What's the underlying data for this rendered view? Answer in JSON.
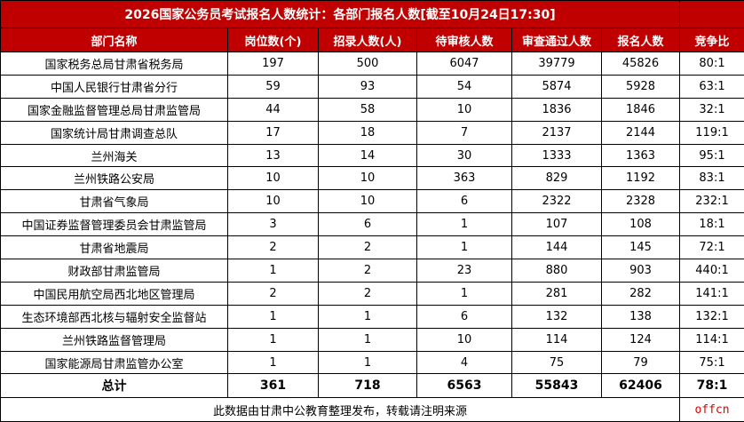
{
  "title": "2026国家公务员考试报名人数统计：各部门报名人数[截至10月24日17:30]",
  "headers": [
    "部门名称",
    "岗位数(个)",
    "招录人数(人)",
    "待审核人数",
    "审查通过人数",
    "报名人数",
    "竞争比"
  ],
  "rows": [
    [
      "国家税务总局甘肃省税务局",
      "197",
      "500",
      "6047",
      "39779",
      "45826",
      "80:1"
    ],
    [
      "中国人民银行甘肃省分行",
      "59",
      "93",
      "54",
      "5874",
      "5928",
      "63:1"
    ],
    [
      "国家金融监督管理总局甘肃监管局",
      "44",
      "58",
      "10",
      "1836",
      "1846",
      "32:1"
    ],
    [
      "国家统计局甘肃调查总队",
      "17",
      "18",
      "7",
      "2137",
      "2144",
      "119:1"
    ],
    [
      "兰州海关",
      "13",
      "14",
      "30",
      "1333",
      "1363",
      "95:1"
    ],
    [
      "兰州铁路公安局",
      "10",
      "10",
      "363",
      "829",
      "1192",
      "83:1"
    ],
    [
      "甘肃省气象局",
      "10",
      "10",
      "6",
      "2322",
      "2328",
      "232:1"
    ],
    [
      "中国证券监督管理委员会甘肃监管局",
      "3",
      "6",
      "1",
      "107",
      "108",
      "18:1"
    ],
    [
      "甘肃省地震局",
      "2",
      "2",
      "1",
      "144",
      "145",
      "72:1"
    ],
    [
      "财政部甘肃监管局",
      "1",
      "2",
      "23",
      "880",
      "903",
      "440:1"
    ],
    [
      "中国民用航空局西北地区管理局",
      "2",
      "2",
      "1",
      "281",
      "282",
      "141:1"
    ],
    [
      "生态环境部西北核与辐射安全监督站",
      "1",
      "1",
      "6",
      "132",
      "138",
      "132:1"
    ],
    [
      "兰州铁路监督管理局",
      "1",
      "1",
      "10",
      "114",
      "124",
      "114:1"
    ],
    [
      "国家能源局甘肃监管办公室",
      "1",
      "1",
      "4",
      "75",
      "79",
      "75:1"
    ]
  ],
  "total": [
    "总计",
    "361",
    "718",
    "6563",
    "55843",
    "62406",
    "78:1"
  ],
  "footer": {
    "note": "此数据由甘肃中公教育整理发布，转载请注明来源",
    "brand": "offcn"
  },
  "colors": {
    "header_bg": "#c00000",
    "header_text": "#ffffff",
    "brand": "#e00000"
  }
}
